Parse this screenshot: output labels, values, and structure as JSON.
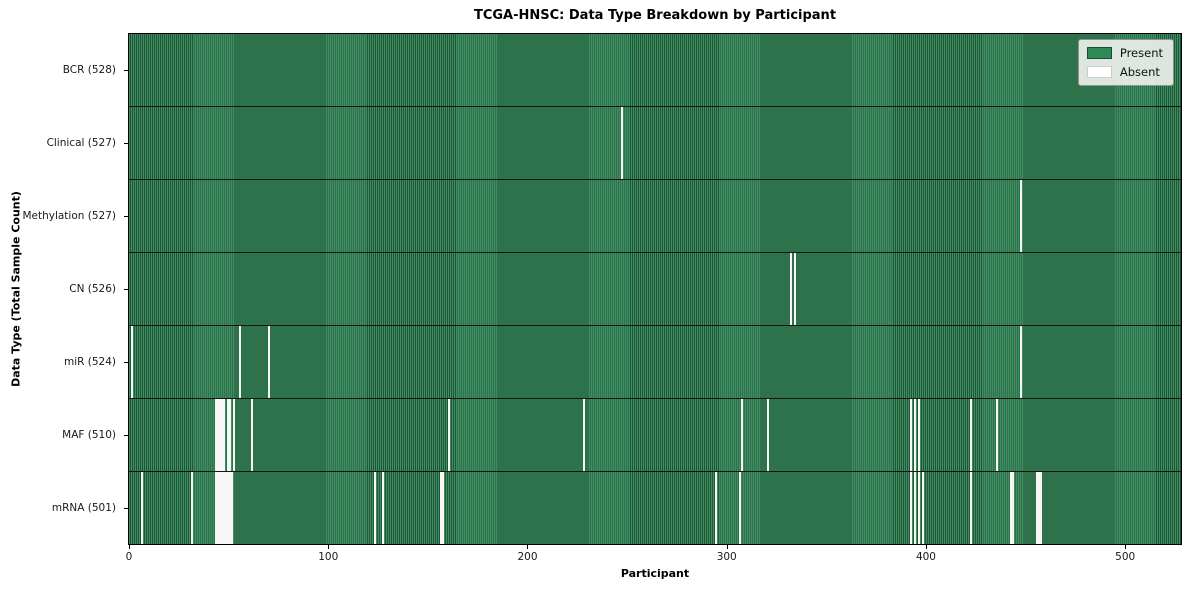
{
  "title": "TCGA-HNSC: Data Type Breakdown by Participant",
  "axes": {
    "x_label": "Participant",
    "y_label": "Data Type (Total Sample Count)",
    "x_ticks": [
      0,
      100,
      200,
      300,
      400,
      500
    ]
  },
  "legend": {
    "items": [
      {
        "label": "Present",
        "color": "#2e8b57"
      },
      {
        "label": "Absent",
        "color": "#ffffff"
      }
    ]
  },
  "chart_data": {
    "type": "heatmap",
    "title": "TCGA-HNSC: Data Type Breakdown by Participant",
    "xlabel": "Participant",
    "ylabel": "Data Type (Total Sample Count)",
    "n_participants": 528,
    "x_range": [
      0,
      528
    ],
    "legend_position": "upper right",
    "value_encoding": {
      "present": 1,
      "absent": 0
    },
    "colors": {
      "present": "#2e8b57",
      "present_stripe_light": "#3f8d61",
      "present_stripe_dark": "#1d5737",
      "absent": "#f7f7f6",
      "row_separator": "#151515"
    },
    "rows": [
      {
        "label": "BCR (528)",
        "data_type": "BCR",
        "present_count": 528,
        "absent_count": 0,
        "absent_participants": []
      },
      {
        "label": "Clinical (527)",
        "data_type": "Clinical",
        "present_count": 527,
        "absent_count": 1,
        "absent_participants": [
          247
        ]
      },
      {
        "label": "Methylation (527)",
        "data_type": "Methylation",
        "present_count": 527,
        "absent_count": 1,
        "absent_participants": [
          447
        ]
      },
      {
        "label": "CN (526)",
        "data_type": "CN",
        "present_count": 526,
        "absent_count": 2,
        "absent_participants": [
          332,
          334
        ]
      },
      {
        "label": "miR (524)",
        "data_type": "miR",
        "present_count": 524,
        "absent_count": 4,
        "absent_participants": [
          1,
          55,
          70,
          447
        ]
      },
      {
        "label": "MAF (510)",
        "data_type": "MAF",
        "present_count": 510,
        "absent_count": 18,
        "absent_participants": [
          43,
          44,
          45,
          46,
          47,
          49,
          50,
          52,
          61,
          160,
          228,
          307,
          320,
          392,
          394,
          396,
          422,
          435
        ]
      },
      {
        "label": "mRNA (501)",
        "data_type": "mRNA",
        "present_count": 501,
        "absent_count": 27,
        "absent_participants": [
          6,
          31,
          43,
          44,
          45,
          46,
          47,
          48,
          49,
          50,
          51,
          123,
          127,
          156,
          157,
          294,
          306,
          392,
          394,
          396,
          398,
          422,
          442,
          443,
          455,
          456,
          457
        ]
      }
    ]
  }
}
